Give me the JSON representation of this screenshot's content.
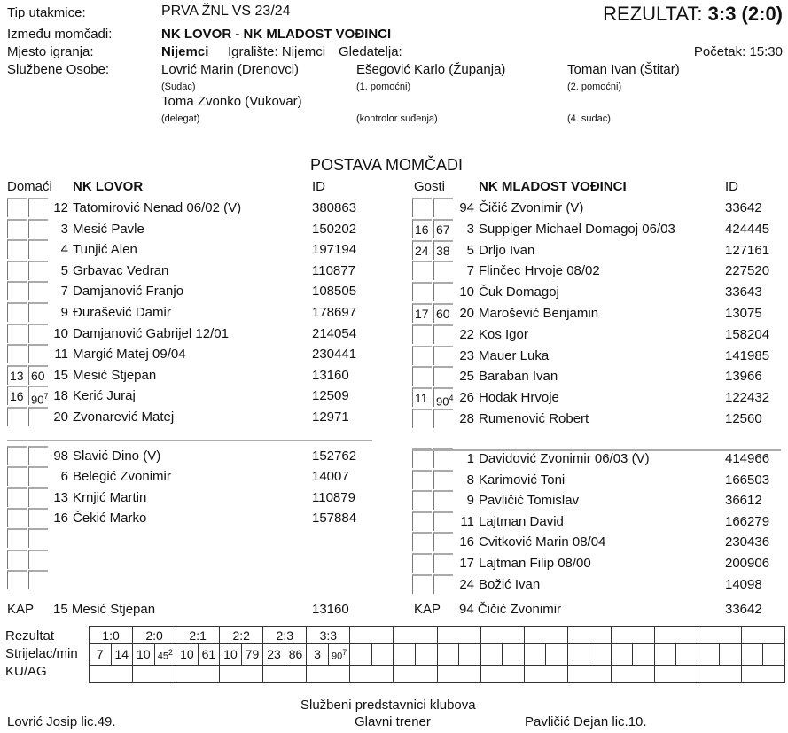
{
  "header": {
    "type_label": "Tip utakmice:",
    "type_value": "PRVA ŽNL VS 23/24",
    "result_label": "REZULTAT:",
    "result_value": "3:3 (2:0)",
    "teams_label": "Između momčadi:",
    "teams_value": "NK LOVOR - NK MLADOST VOĐINCI",
    "place_label": "Mjesto igranja:",
    "place_value": "Nijemci",
    "pitch": "Igralište: Nijemci",
    "spectators": "Gledatelja:",
    "start": "Početak: 15:30",
    "officials_label": "Službene Osobe:",
    "officials": [
      {
        "name": "Lovrić Marin (Drenovci)",
        "role": "(Sudac)"
      },
      {
        "name": "Ešegović Karlo (Županja)",
        "role": "(1. pomoćni)"
      },
      {
        "name": "Toman Ivan (Štitar)",
        "role": "(2. pomoćni)"
      },
      {
        "name": "Toma Zvonko (Vukovar)",
        "role": "(delegat)"
      },
      {
        "name": "",
        "role": "(kontrolor suđenja)"
      },
      {
        "name": "",
        "role": "(4. sudac)"
      }
    ]
  },
  "lineups_title": "POSTAVA MOMČADI",
  "home": {
    "side": "Domaći",
    "team": "NK LOVOR",
    "id_label": "ID",
    "starters": [
      {
        "a": "",
        "b": "",
        "num": "12",
        "name": "Tatomirović Nenad  06/02  (V)",
        "id": "380863"
      },
      {
        "a": "",
        "b": "",
        "num": "3",
        "name": "Mesić Pavle",
        "id": "150202"
      },
      {
        "a": "",
        "b": "",
        "num": "4",
        "name": "Tunjić Alen",
        "id": "197194"
      },
      {
        "a": "",
        "b": "",
        "num": "5",
        "name": "Grbavac Vedran",
        "id": "110877"
      },
      {
        "a": "",
        "b": "",
        "num": "7",
        "name": "Damjanović Franjo",
        "id": "108505"
      },
      {
        "a": "",
        "b": "",
        "num": "9",
        "name": "Đurašević Damir",
        "id": "178697"
      },
      {
        "a": "",
        "b": "",
        "num": "10",
        "name": "Damjanović Gabrijel  12/01",
        "id": "214054"
      },
      {
        "a": "",
        "b": "",
        "num": "11",
        "name": "Margić Matej  09/04",
        "id": "230441"
      },
      {
        "a": "13",
        "b": "60",
        "num": "15",
        "name": "Mesić Stjepan",
        "id": "13160"
      },
      {
        "a": "16",
        "b": "90",
        "bsup": "7",
        "num": "18",
        "name": "Kerić Juraj",
        "id": "12509"
      },
      {
        "a": "",
        "b": "",
        "num": "20",
        "name": "Zvonarević Matej",
        "id": "12971"
      }
    ],
    "subs": [
      {
        "num": "98",
        "name": "Slavić Dino   (V)",
        "id": "152762"
      },
      {
        "num": "6",
        "name": "Belegić Zvonimir",
        "id": "14007"
      },
      {
        "num": "13",
        "name": "Krnjić Martin",
        "id": "110879"
      },
      {
        "num": "16",
        "name": "Čekić Marko",
        "id": "157884"
      },
      {
        "num": "",
        "name": "",
        "id": ""
      },
      {
        "num": "",
        "name": "",
        "id": ""
      },
      {
        "num": "",
        "name": "",
        "id": ""
      }
    ],
    "captain_label": "KAP",
    "captain": "15 Mesić Stjepan",
    "captain_id": "13160"
  },
  "away": {
    "side": "Gosti",
    "team": "NK MLADOST VOĐINCI",
    "id_label": "ID",
    "starters": [
      {
        "a": "",
        "b": "",
        "num": "94",
        "name": "Čičić Zvonimir   (V)",
        "id": "33642"
      },
      {
        "a": "16",
        "b": "67",
        "num": "3",
        "name": "Suppiger Michael Domagoj  06/03",
        "id": "424445"
      },
      {
        "a": "24",
        "b": "38",
        "num": "5",
        "name": "Drljo Ivan",
        "id": "127161"
      },
      {
        "a": "",
        "b": "",
        "num": "7",
        "name": "Flinčec Hrvoje  08/02",
        "id": "227520"
      },
      {
        "a": "",
        "b": "",
        "num": "10",
        "name": "Čuk Domagoj",
        "id": "33643"
      },
      {
        "a": "17",
        "b": "60",
        "num": "20",
        "name": "Marošević Benjamin",
        "id": "13075"
      },
      {
        "a": "",
        "b": "",
        "num": "22",
        "name": "Kos Igor",
        "id": "158204"
      },
      {
        "a": "",
        "b": "",
        "num": "23",
        "name": "Mauer Luka",
        "id": "141985"
      },
      {
        "a": "",
        "b": "",
        "num": "25",
        "name": "Baraban Ivan",
        "id": "13966"
      },
      {
        "a": "11",
        "b": "90",
        "bsup": "4",
        "num": "26",
        "name": "Hodak Hrvoje",
        "id": "122432"
      },
      {
        "a": "",
        "b": "",
        "num": "28",
        "name": "Rumenović Robert",
        "id": "12560"
      }
    ],
    "subs": [
      {
        "num": "1",
        "name": "Davidović Zvonimir 06/03 (V)",
        "id": "414966"
      },
      {
        "num": "8",
        "name": "Karimović Toni",
        "id": "166503"
      },
      {
        "num": "9",
        "name": "Pavličić Tomislav",
        "id": "36612"
      },
      {
        "num": "11",
        "name": "Lajtman David",
        "id": "166279"
      },
      {
        "num": "16",
        "name": "Cvitković Marin  08/04",
        "id": "230436"
      },
      {
        "num": "17",
        "name": "Lajtman Filip  08/00",
        "id": "200906"
      },
      {
        "num": "24",
        "name": "Božić Ivan",
        "id": "14098"
      }
    ],
    "captain_label": "KAP",
    "captain": "94 Čičić Zvonimir",
    "captain_id": "33642"
  },
  "score_grid": {
    "labels": [
      "Rezultat",
      "Strijelac/min",
      "KU/AG"
    ],
    "scores": [
      "1:0",
      "2:0",
      "2:1",
      "2:2",
      "2:3",
      "3:3"
    ],
    "scorers": [
      [
        "7",
        "14"
      ],
      [
        "10",
        "45",
        "2"
      ],
      [
        "10",
        "61"
      ],
      [
        "10",
        "79"
      ],
      [
        "23",
        "86"
      ],
      [
        "3",
        "90",
        "7"
      ]
    ],
    "columns": 16
  },
  "footer": {
    "title": "Službeni predstavnici klubova",
    "home_coach": "Lovrić Josip lic.49.",
    "role": "Glavni trener",
    "away_coach": "Pavličić Dejan lic.10."
  }
}
